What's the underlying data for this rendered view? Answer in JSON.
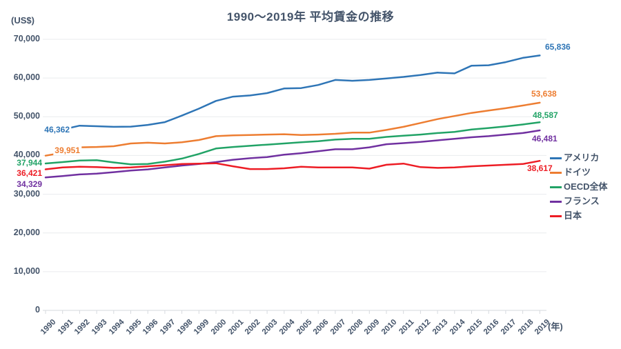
{
  "chart_data": {
    "type": "line",
    "title": "1990〜2019年 平均賃金の推移",
    "y_unit": "(US$)",
    "x_unit": "(年)",
    "ylim": [
      0,
      70000
    ],
    "grid": "horizontal",
    "legend_position": "right",
    "y_ticks": [
      "0",
      "10,000",
      "20,000",
      "30,000",
      "40,000",
      "50,000",
      "60,000",
      "70,000"
    ],
    "x": [
      "1990",
      "1991",
      "1992",
      "1993",
      "1994",
      "1995",
      "1996",
      "1997",
      "1998",
      "1999",
      "2000",
      "2001",
      "2002",
      "2003",
      "2004",
      "2005",
      "2006",
      "2007",
      "2008",
      "2009",
      "2010",
      "2011",
      "2012",
      "2013",
      "2014",
      "2015",
      "2016",
      "2017",
      "2018",
      "2019"
    ],
    "series": [
      {
        "name": "アメリカ",
        "color": "#2E75B6",
        "start_label": "46,362",
        "end_label": "65,836",
        "values": [
          46362,
          46700,
          47700,
          47550,
          47400,
          47450,
          47900,
          48600,
          50300,
          52100,
          54100,
          55200,
          55500,
          56100,
          57300,
          57400,
          58200,
          59500,
          59300,
          59500,
          59900,
          60300,
          60800,
          61400,
          61200,
          63200,
          63300,
          64100,
          65200,
          65836
        ]
      },
      {
        "name": "ドイツ",
        "color": "#ED7D31",
        "start_label": "39,951",
        "end_label": "53,638",
        "values": [
          39951,
          40700,
          42100,
          42200,
          42400,
          43100,
          43300,
          43100,
          43400,
          44000,
          45000,
          45200,
          45300,
          45400,
          45500,
          45300,
          45400,
          45600,
          45900,
          45900,
          46600,
          47400,
          48400,
          49400,
          50200,
          51000,
          51600,
          52200,
          52900,
          53638
        ]
      },
      {
        "name": "OECD全体",
        "color": "#21A366",
        "start_label": "37,944",
        "end_label": "48,587",
        "values": [
          37944,
          38300,
          38700,
          38800,
          38200,
          37700,
          37800,
          38400,
          39200,
          40400,
          41800,
          42200,
          42500,
          42800,
          43100,
          43400,
          43700,
          44100,
          44300,
          44300,
          44800,
          45100,
          45400,
          45800,
          46100,
          46700,
          47100,
          47500,
          48000,
          48587
        ]
      },
      {
        "name": "フランス",
        "color": "#7030A0",
        "start_label": "34,329",
        "end_label": "46,481",
        "values": [
          34329,
          34700,
          35100,
          35300,
          35700,
          36100,
          36400,
          36900,
          37400,
          37800,
          38300,
          38900,
          39300,
          39600,
          40200,
          40600,
          41100,
          41600,
          41600,
          42100,
          42900,
          43200,
          43500,
          43900,
          44300,
          44700,
          45000,
          45400,
          45800,
          46481
        ]
      },
      {
        "name": "日本",
        "color": "#ED1C24",
        "start_label": "36,421",
        "end_label": "38,617",
        "values": [
          36421,
          36900,
          37100,
          37000,
          36800,
          36900,
          37200,
          37500,
          37800,
          37900,
          38000,
          37200,
          36500,
          36500,
          36700,
          37100,
          36900,
          36900,
          36900,
          36600,
          37600,
          37900,
          37000,
          36800,
          36900,
          37200,
          37400,
          37600,
          37800,
          38617
        ]
      }
    ]
  },
  "style_colors": {
    "text": "#44546A",
    "grid": "#E9EBEE",
    "axis": "#D6D9DE"
  }
}
